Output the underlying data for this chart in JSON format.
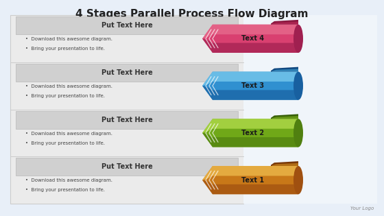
{
  "title": "4 Stages Parallel Process Flow Diagram",
  "title_fontsize": 11,
  "bg_color": "#e8eff8",
  "stages": [
    {
      "label": "Text 4",
      "header": "Put Text Here",
      "bullets": [
        "Download this awesome diagram.",
        "Bring your presentation to life."
      ],
      "color_top": "#c93060",
      "color_mid": "#d94070",
      "color_bot": "#a02050",
      "color_curl": "#8b1840",
      "color_light": "#e87090"
    },
    {
      "label": "Text 3",
      "header": "Put Text Here",
      "bullets": [
        "Download this awesome diagram.",
        "Bring your presentation to life."
      ],
      "color_top": "#50b8e8",
      "color_mid": "#3090d0",
      "color_bot": "#1860a0",
      "color_curl": "#104880",
      "color_light": "#80d0f0"
    },
    {
      "label": "Text 2",
      "header": "Put Text Here",
      "bullets": [
        "Download this awesome diagram.",
        "Bring your presentation to life."
      ],
      "color_top": "#90c820",
      "color_mid": "#70a818",
      "color_bot": "#508010",
      "color_curl": "#386008",
      "color_light": "#b8e050"
    },
    {
      "label": "Text 1",
      "header": "Put Text Here",
      "bullets": [
        "Download this awesome diagram.",
        "Bring your presentation to life."
      ],
      "color_top": "#e8a020",
      "color_mid": "#c87818",
      "color_bot": "#a05010",
      "color_curl": "#783808",
      "color_light": "#f0c050"
    }
  ],
  "footer_text": "Your Logo"
}
